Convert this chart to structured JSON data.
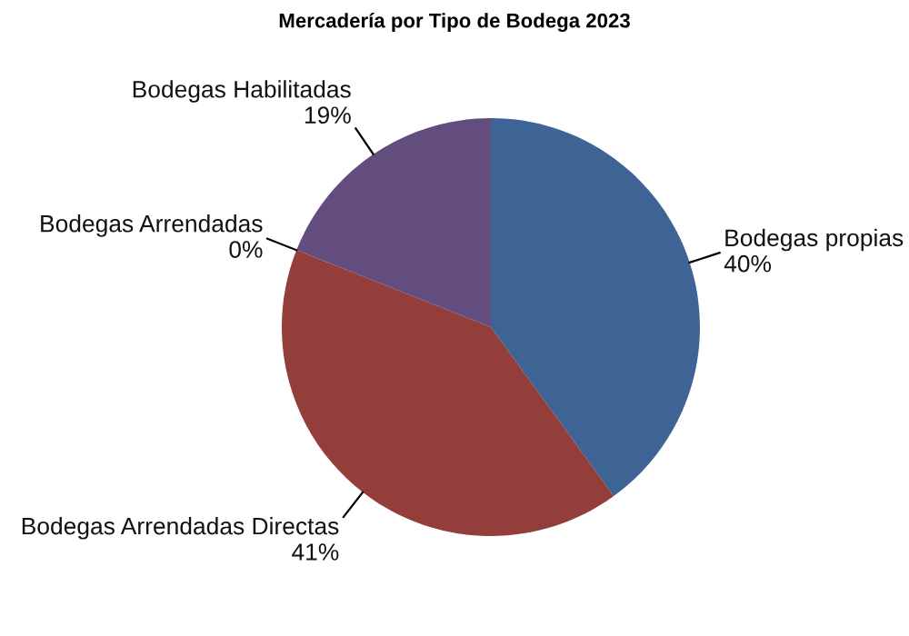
{
  "chart_data": {
    "type": "pie",
    "title": "Mercadería por Tipo de Bodega 2023",
    "categories": [
      "Bodegas propias",
      "Bodegas Arrendadas Directas",
      "Bodegas Arrendadas",
      "Bodegas Habilitadas"
    ],
    "values": [
      40,
      41,
      0,
      19
    ],
    "value_labels": [
      "40%",
      "41%",
      "0%",
      "19%"
    ],
    "colors": [
      "#3d6494",
      "#943e3b",
      "#7a9440",
      "#634d7e"
    ],
    "legend": false
  }
}
